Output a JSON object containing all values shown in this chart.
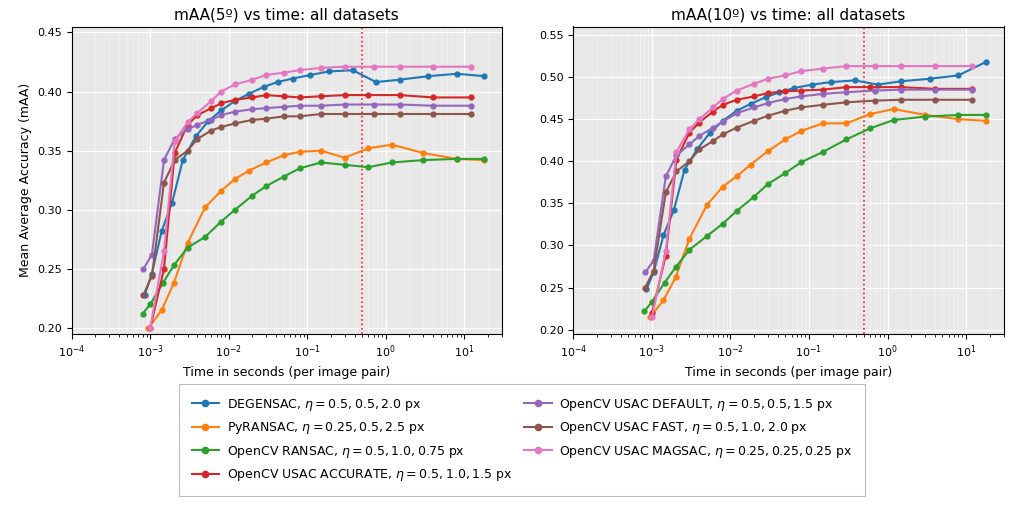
{
  "title1": "mAA(5º) vs time: all datasets",
  "title2": "mAA(10º) vs time: all datasets",
  "xlabel": "Time in seconds (per image pair)",
  "ylabel": "Mean Average Accuracy (mAA)",
  "ylim1": [
    0.195,
    0.455
  ],
  "ylim2": [
    0.195,
    0.56
  ],
  "yticks1": [
    0.2,
    0.25,
    0.3,
    0.35,
    0.4,
    0.45
  ],
  "yticks2": [
    0.2,
    0.25,
    0.3,
    0.35,
    0.4,
    0.45,
    0.5,
    0.55
  ],
  "xlim": [
    0.0001,
    30
  ],
  "vline_x": 0.5,
  "bg_color": "#e8e8e8",
  "series": [
    {
      "label": "DEGENSAC, $\\eta = 0.5, 0.5, 2.0$ px",
      "color": "#1f77b4",
      "x": [
        0.00085,
        0.00105,
        0.0014,
        0.0019,
        0.0026,
        0.0038,
        0.0055,
        0.008,
        0.012,
        0.018,
        0.028,
        0.042,
        0.065,
        0.11,
        0.19,
        0.38,
        0.75,
        1.5,
        3.5,
        8.0,
        18.0
      ],
      "y1": [
        0.228,
        0.246,
        0.282,
        0.306,
        0.342,
        0.362,
        0.375,
        0.384,
        0.392,
        0.398,
        0.404,
        0.408,
        0.411,
        0.414,
        0.417,
        0.418,
        0.408,
        0.41,
        0.413,
        0.415,
        0.413
      ],
      "y2": [
        0.248,
        0.268,
        0.312,
        0.342,
        0.39,
        0.415,
        0.434,
        0.448,
        0.46,
        0.468,
        0.476,
        0.482,
        0.487,
        0.491,
        0.494,
        0.496,
        0.491,
        0.495,
        0.498,
        0.502,
        0.518
      ]
    },
    {
      "label": "PyRANSAC, $\\eta = 0.25, 0.5, 2.5$ px",
      "color": "#ff7f0e",
      "x": [
        0.00095,
        0.0014,
        0.002,
        0.003,
        0.005,
        0.008,
        0.012,
        0.018,
        0.03,
        0.05,
        0.08,
        0.15,
        0.3,
        0.6,
        1.2,
        3.0,
        8.0,
        18.0
      ],
      "y1": [
        0.2,
        0.215,
        0.238,
        0.272,
        0.302,
        0.316,
        0.326,
        0.333,
        0.34,
        0.346,
        0.349,
        0.35,
        0.344,
        0.352,
        0.355,
        0.348,
        0.343,
        0.342
      ],
      "y2": [
        0.215,
        0.235,
        0.262,
        0.308,
        0.348,
        0.37,
        0.382,
        0.396,
        0.412,
        0.426,
        0.436,
        0.445,
        0.445,
        0.456,
        0.462,
        0.455,
        0.45,
        0.448
      ]
    },
    {
      "label": "OpenCV RANSAC, $\\eta = 0.5, 1.0, 0.75$ px",
      "color": "#2ca02c",
      "x": [
        0.0008,
        0.001,
        0.00145,
        0.002,
        0.003,
        0.005,
        0.008,
        0.012,
        0.02,
        0.03,
        0.05,
        0.08,
        0.15,
        0.3,
        0.6,
        1.2,
        3.0,
        8.0,
        18.0
      ],
      "y1": [
        0.212,
        0.22,
        0.238,
        0.253,
        0.268,
        0.277,
        0.29,
        0.3,
        0.312,
        0.32,
        0.328,
        0.335,
        0.34,
        0.338,
        0.336,
        0.34,
        0.342,
        0.343,
        0.343
      ],
      "y2": [
        0.222,
        0.233,
        0.256,
        0.274,
        0.295,
        0.311,
        0.326,
        0.341,
        0.358,
        0.373,
        0.386,
        0.399,
        0.411,
        0.426,
        0.439,
        0.449,
        0.453,
        0.455,
        0.455
      ]
    },
    {
      "label": "OpenCV USAC ACCURATE, $\\eta = 0.5, 1.0, 1.5$ px",
      "color": "#d62728",
      "x": [
        0.001,
        0.0015,
        0.00205,
        0.003,
        0.004,
        0.006,
        0.008,
        0.012,
        0.02,
        0.03,
        0.05,
        0.08,
        0.15,
        0.3,
        0.6,
        1.5,
        4.0,
        12.0
      ],
      "y1": [
        0.2,
        0.25,
        0.348,
        0.372,
        0.38,
        0.386,
        0.39,
        0.393,
        0.395,
        0.397,
        0.396,
        0.395,
        0.396,
        0.397,
        0.397,
        0.397,
        0.395,
        0.395
      ],
      "y2": [
        0.22,
        0.288,
        0.402,
        0.434,
        0.446,
        0.459,
        0.467,
        0.473,
        0.477,
        0.481,
        0.483,
        0.484,
        0.485,
        0.488,
        0.488,
        0.488,
        0.486,
        0.486
      ]
    },
    {
      "label": "OpenCV USAC DEFAULT, $\\eta = 0.5, 0.5, 1.5$ px",
      "color": "#9467bd",
      "x": [
        0.00082,
        0.00105,
        0.0015,
        0.00205,
        0.003,
        0.004,
        0.006,
        0.008,
        0.012,
        0.02,
        0.03,
        0.05,
        0.08,
        0.15,
        0.3,
        0.7,
        1.5,
        4.0,
        12.0
      ],
      "y1": [
        0.25,
        0.262,
        0.342,
        0.36,
        0.368,
        0.372,
        0.376,
        0.38,
        0.383,
        0.385,
        0.386,
        0.387,
        0.388,
        0.388,
        0.389,
        0.389,
        0.389,
        0.388,
        0.388
      ],
      "y2": [
        0.268,
        0.282,
        0.382,
        0.407,
        0.42,
        0.43,
        0.44,
        0.447,
        0.457,
        0.464,
        0.469,
        0.474,
        0.477,
        0.48,
        0.482,
        0.484,
        0.485,
        0.485,
        0.485
      ]
    },
    {
      "label": "OpenCV USAC FAST, $\\eta = 0.5, 1.0, 2.0$ px",
      "color": "#8c564b",
      "x": [
        0.00082,
        0.00105,
        0.0015,
        0.00205,
        0.003,
        0.004,
        0.006,
        0.008,
        0.012,
        0.02,
        0.03,
        0.05,
        0.08,
        0.15,
        0.3,
        0.7,
        1.5,
        4.0,
        12.0
      ],
      "y1": [
        0.228,
        0.244,
        0.323,
        0.342,
        0.35,
        0.36,
        0.367,
        0.37,
        0.373,
        0.376,
        0.377,
        0.379,
        0.379,
        0.381,
        0.381,
        0.381,
        0.381,
        0.381,
        0.381
      ],
      "y2": [
        0.25,
        0.27,
        0.363,
        0.388,
        0.4,
        0.414,
        0.424,
        0.432,
        0.44,
        0.448,
        0.454,
        0.46,
        0.464,
        0.467,
        0.47,
        0.472,
        0.473,
        0.473,
        0.473
      ]
    },
    {
      "label": "OpenCV USAC MAGSAC, $\\eta = 0.25, 0.25, 0.25$ px",
      "color": "#e377c2",
      "x": [
        0.001,
        0.0015,
        0.00205,
        0.003,
        0.004,
        0.006,
        0.008,
        0.012,
        0.02,
        0.03,
        0.05,
        0.08,
        0.15,
        0.3,
        0.7,
        1.5,
        4.0,
        12.0
      ],
      "y1": [
        0.2,
        0.265,
        0.358,
        0.374,
        0.382,
        0.392,
        0.4,
        0.406,
        0.41,
        0.414,
        0.416,
        0.418,
        0.42,
        0.421,
        0.421,
        0.421,
        0.421,
        0.421
      ],
      "y2": [
        0.215,
        0.293,
        0.411,
        0.438,
        0.45,
        0.464,
        0.474,
        0.484,
        0.492,
        0.498,
        0.502,
        0.507,
        0.51,
        0.513,
        0.513,
        0.513,
        0.513,
        0.513
      ]
    }
  ]
}
